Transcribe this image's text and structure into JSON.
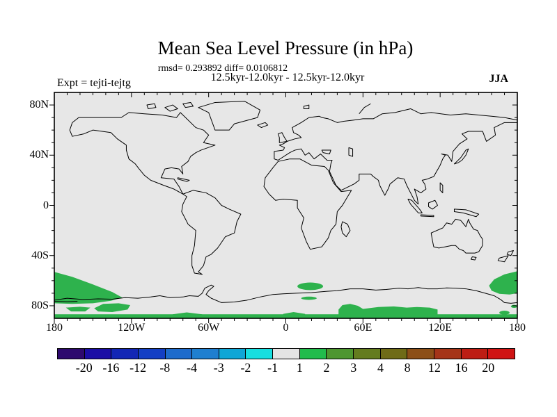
{
  "header": {
    "title": "Mean Sea Level Pressure (in hPa)",
    "stats_line": "rmsd= 0.293892 diff= 0.0106812",
    "case_line": "12.5kyr-12.0kyr - 12.5kyr-12.0kyr",
    "expt_label": "Expt = tejti-tejtg",
    "season_label": "JJA"
  },
  "map": {
    "background": "#E7E7E7",
    "coastline_color": "#000000",
    "shading_color": "#2EB24D",
    "lat_ticks": [
      "80N",
      "40N",
      "0",
      "40S",
      "80S"
    ],
    "lat_tick_values": [
      80,
      40,
      0,
      -40,
      -80
    ],
    "lon_ticks": [
      "180",
      "120W",
      "60W",
      "0",
      "60E",
      "120E",
      "180"
    ],
    "lon_tick_values": [
      -180,
      -120,
      -60,
      0,
      60,
      120,
      180
    ]
  },
  "colorbar": {
    "levels": [
      "-20",
      "-16",
      "-12",
      "-8",
      "-4",
      "-3",
      "-2",
      "-1",
      "1",
      "2",
      "3",
      "4",
      "8",
      "12",
      "16",
      "20"
    ],
    "colors": [
      "#2E0A6E",
      "#1B0EA5",
      "#1226B5",
      "#143FC4",
      "#1E6BCC",
      "#1F7FD0",
      "#0FA6D6",
      "#17DEE0",
      "#E4E4E4",
      "#22BC4C",
      "#4E9630",
      "#647C1F",
      "#6F6B17",
      "#8C4F17",
      "#A53418",
      "#BD1D14",
      "#CF1414"
    ]
  },
  "chart_data": {
    "type": "heatmap",
    "title": "Mean Sea Level Pressure (in hPa)",
    "subtitle": "12.5kyr-12.0kyr - 12.5kyr-12.0kyr",
    "experiment": "tejti-tejtg",
    "season": "JJA",
    "rmsd": 0.293892,
    "diff": 0.0106812,
    "units": "hPa",
    "projection": "cylindrical-equidistant",
    "lon_range": [
      -180,
      180
    ],
    "lat_range": [
      -90,
      90
    ],
    "xticks": [
      -180,
      -120,
      -60,
      0,
      60,
      120,
      180
    ],
    "yticks": [
      80,
      40,
      0,
      -40,
      -80
    ],
    "contour_levels": [
      -20,
      -16,
      -12,
      -8,
      -4,
      -3,
      -2,
      -1,
      1,
      2,
      3,
      4,
      8,
      12,
      16,
      20
    ],
    "palette": [
      "#2E0A6E",
      "#1B0EA5",
      "#1226B5",
      "#143FC4",
      "#1E6BCC",
      "#1F7FD0",
      "#0FA6D6",
      "#17DEE0",
      "#E4E4E4",
      "#22BC4C",
      "#4E9630",
      "#647C1F",
      "#6F6B17",
      "#8C4F17",
      "#A53418",
      "#BD1D14",
      "#CF1414"
    ],
    "background_value_range": [
      -1,
      1
    ],
    "shaded_regions": [
      {
        "value_range": [
          1,
          2
        ],
        "lon_range": [
          -180,
          -127
        ],
        "lat_range": [
          -77,
          -52
        ],
        "description": "large wedge over Southern Ocean at left edge"
      },
      {
        "value_range": [
          1,
          2
        ],
        "lon_range": [
          -171,
          -152
        ],
        "lat_range": [
          -85,
          -80
        ],
        "description": "small patch near 80S"
      },
      {
        "value_range": [
          1,
          2
        ],
        "lon_range": [
          -149,
          -121
        ],
        "lat_range": [
          -85,
          -78
        ],
        "description": "patch south of 80S line"
      },
      {
        "value_range": [
          1,
          2
        ],
        "lon_range": [
          9,
          29
        ],
        "lat_range": [
          -68,
          -62
        ],
        "description": "oval patch off Antarctic coast near 20E"
      },
      {
        "value_range": [
          1,
          2
        ],
        "lon_range": [
          12,
          24
        ],
        "lat_range": [
          -75,
          -73
        ],
        "description": "thin sliver near 20E"
      },
      {
        "value_range": [
          1,
          2
        ],
        "lon_range": [
          41,
          118
        ],
        "lat_range": [
          -90,
          -78
        ],
        "description": "broad band over interior Antarctica 40E-120E"
      },
      {
        "value_range": [
          1,
          2
        ],
        "lon_range": [
          -89,
          -65
        ],
        "lat_range": [
          -85,
          -82
        ],
        "description": "small bump on polar band near 75W"
      },
      {
        "value_range": [
          1,
          2
        ],
        "lon_range": [
          -2,
          15
        ],
        "lat_range": [
          -85,
          -82
        ],
        "description": "small bump on polar band near 0"
      },
      {
        "value_range": [
          1,
          2
        ],
        "lon_range": [
          158,
          180
        ],
        "lat_range": [
          -72,
          -52
        ],
        "description": "blob at right edge over Ross Sea sector"
      },
      {
        "value_range": [
          1,
          2
        ],
        "lon_range": [
          166,
          174
        ],
        "lat_range": [
          -87,
          -84
        ],
        "description": "small oval near 170E, 85S"
      },
      {
        "value_range": [
          1,
          2
        ],
        "lon_range": [
          -180,
          180
        ],
        "lat_range": [
          -90,
          -87
        ],
        "description": "continuous band along bottom edge"
      }
    ],
    "legend_position": "bottom horizontal label bar"
  }
}
